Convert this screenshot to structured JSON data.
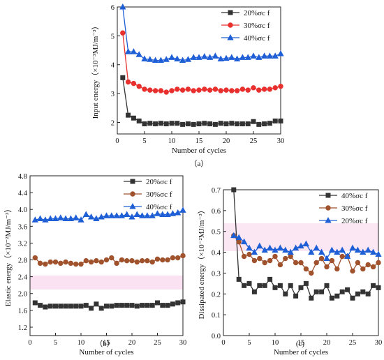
{
  "chart_data": [
    {
      "type": "line",
      "caption": "（a）",
      "xlabel": "Number of cycles",
      "ylabel": "Input energy（×10⁻³MJ/m⁻³）",
      "legend": "upper right",
      "x": [
        1,
        2,
        3,
        4,
        5,
        6,
        7,
        8,
        9,
        10,
        11,
        12,
        13,
        14,
        15,
        16,
        17,
        18,
        19,
        20,
        21,
        22,
        23,
        24,
        25,
        26,
        27,
        28,
        29,
        30
      ],
      "xlim": [
        0,
        30
      ],
      "xticks": [
        0,
        5,
        10,
        15,
        20,
        25,
        30
      ],
      "ylim": [
        1.6,
        6
      ],
      "yticks": [
        2,
        3,
        4,
        5,
        6
      ],
      "series": [
        {
          "name": "20%σc f",
          "color": "#333333",
          "marker": "square",
          "values": [
            3.55,
            2.25,
            2.15,
            2.05,
            1.95,
            1.97,
            1.95,
            1.97,
            1.95,
            1.97,
            1.97,
            1.93,
            1.95,
            1.93,
            1.95,
            1.97,
            1.95,
            1.93,
            1.97,
            1.95,
            1.97,
            1.95,
            1.95,
            1.95,
            2.03,
            1.93,
            1.95,
            1.97,
            2.05,
            2.05
          ]
        },
        {
          "name": "30%σc f",
          "color": "#e8302e",
          "marker": "circle",
          "values": [
            5.1,
            3.4,
            3.35,
            3.25,
            3.15,
            3.12,
            3.1,
            3.1,
            3.05,
            3.1,
            3.15,
            3.12,
            3.15,
            3.1,
            3.12,
            3.15,
            3.12,
            3.15,
            3.1,
            3.12,
            3.1,
            3.1,
            3.15,
            3.12,
            3.2,
            3.12,
            3.15,
            3.15,
            3.2,
            3.25
          ]
        },
        {
          "name": "40%σc f",
          "color": "#1f5fd6",
          "marker": "triangle",
          "values": [
            6.0,
            4.45,
            4.45,
            4.35,
            4.2,
            4.18,
            4.15,
            4.15,
            4.18,
            4.25,
            4.2,
            4.15,
            4.18,
            4.25,
            4.25,
            4.28,
            4.25,
            4.3,
            4.2,
            4.22,
            4.25,
            4.2,
            4.25,
            4.25,
            4.3,
            4.25,
            4.3,
            4.3,
            4.3,
            4.38
          ]
        }
      ]
    },
    {
      "type": "line",
      "caption": "（b）",
      "xlabel": "Number of cycles",
      "ylabel": "Elastic energy（×10⁻²MJ/m⁻³）",
      "legend": "upper right",
      "x": [
        1,
        2,
        3,
        4,
        5,
        6,
        7,
        8,
        9,
        10,
        11,
        12,
        13,
        14,
        15,
        16,
        17,
        18,
        19,
        20,
        21,
        22,
        23,
        24,
        25,
        26,
        27,
        28,
        29,
        30
      ],
      "xlim": [
        0,
        30
      ],
      "xticks": [
        0,
        5,
        10,
        15,
        20,
        25,
        30
      ],
      "ylim": [
        1.0,
        4.8
      ],
      "yticks": [
        1.2,
        1.6,
        {
          "value": 2,
          "label": "2.0"
        },
        2.4,
        2.8,
        3.2,
        3.6,
        {
          "value": 4,
          "label": "4.0"
        },
        4.4,
        4.8
      ],
      "series": [
        {
          "name": "20%σc f",
          "color": "#333333",
          "marker": "square",
          "values": [
            1.78,
            1.72,
            1.68,
            1.7,
            1.7,
            1.7,
            1.7,
            1.7,
            1.7,
            1.7,
            1.72,
            1.65,
            1.75,
            1.65,
            1.7,
            1.7,
            1.72,
            1.72,
            1.72,
            1.72,
            1.7,
            1.72,
            1.72,
            1.72,
            1.78,
            1.72,
            1.72,
            1.75,
            1.78,
            1.8
          ]
        },
        {
          "name": "30%σc f",
          "color": "#a0522d",
          "marker": "circle",
          "values": [
            2.85,
            2.72,
            2.7,
            2.75,
            2.75,
            2.72,
            2.75,
            2.72,
            2.7,
            2.7,
            2.78,
            2.75,
            2.78,
            2.75,
            2.8,
            2.85,
            2.72,
            2.8,
            2.78,
            2.78,
            2.75,
            2.78,
            2.78,
            2.75,
            2.82,
            2.8,
            2.8,
            2.85,
            2.85,
            2.9
          ]
        },
        {
          "name": "40%σc f",
          "color": "#1f5fd6",
          "marker": "triangle",
          "values": [
            3.75,
            3.78,
            3.75,
            3.78,
            3.78,
            3.8,
            3.78,
            3.78,
            3.8,
            3.75,
            3.88,
            3.82,
            3.78,
            3.82,
            3.85,
            3.85,
            3.85,
            3.85,
            3.88,
            3.82,
            3.88,
            3.85,
            3.85,
            3.85,
            3.9,
            3.88,
            3.88,
            3.9,
            3.92,
            3.98
          ]
        }
      ]
    },
    {
      "type": "line",
      "caption": "(c)",
      "xlabel": "Number of cycles",
      "ylabel": "Dissipated energy（×10⁻²MJ/m⁻³）",
      "legend": "upper right",
      "x": [
        2,
        3,
        4,
        5,
        6,
        7,
        8,
        9,
        10,
        11,
        12,
        13,
        14,
        15,
        16,
        17,
        18,
        19,
        20,
        21,
        22,
        23,
        24,
        25,
        26,
        27,
        28,
        29,
        30
      ],
      "xlim": [
        0,
        30
      ],
      "xticks": [
        0,
        5,
        10,
        15,
        20,
        25,
        30
      ],
      "ylim": [
        0,
        0.7
      ],
      "yticks": [
        {
          "value": 0,
          "label": "0.0"
        },
        0.1,
        0.2,
        0.3,
        0.4,
        0.5,
        0.6,
        0.7
      ],
      "series": [
        {
          "name": "40%σc f",
          "color": "#333333",
          "marker": "square",
          "values": [
            0.7,
            0.27,
            0.24,
            0.25,
            0.21,
            0.24,
            0.24,
            0.27,
            0.23,
            0.24,
            0.2,
            0.24,
            0.19,
            0.23,
            0.25,
            0.18,
            0.21,
            0.21,
            0.24,
            0.18,
            0.19,
            0.21,
            0.22,
            0.18,
            0.2,
            0.21,
            0.2,
            0.24,
            0.23
          ]
        },
        {
          "name": "30%σc f",
          "color": "#a0522d",
          "marker": "circle",
          "values": [
            0.48,
            0.45,
            0.38,
            0.39,
            0.36,
            0.37,
            0.35,
            0.36,
            0.38,
            0.34,
            0.37,
            0.38,
            0.35,
            0.35,
            0.32,
            0.3,
            0.35,
            0.37,
            0.33,
            0.36,
            0.32,
            0.38,
            0.38,
            0.31,
            0.35,
            0.32,
            0.34,
            0.33,
            0.35
          ]
        },
        {
          "name": "20%σc f",
          "color": "#1f5fd6",
          "marker": "triangle",
          "values": [
            0.48,
            0.47,
            0.45,
            0.42,
            0.4,
            0.43,
            0.41,
            0.42,
            0.41,
            0.42,
            0.41,
            0.4,
            0.42,
            0.43,
            0.44,
            0.4,
            0.42,
            0.4,
            0.37,
            0.41,
            0.4,
            0.41,
            0.38,
            0.42,
            0.41,
            0.4,
            0.41,
            0.4,
            0.39
          ]
        }
      ]
    }
  ]
}
